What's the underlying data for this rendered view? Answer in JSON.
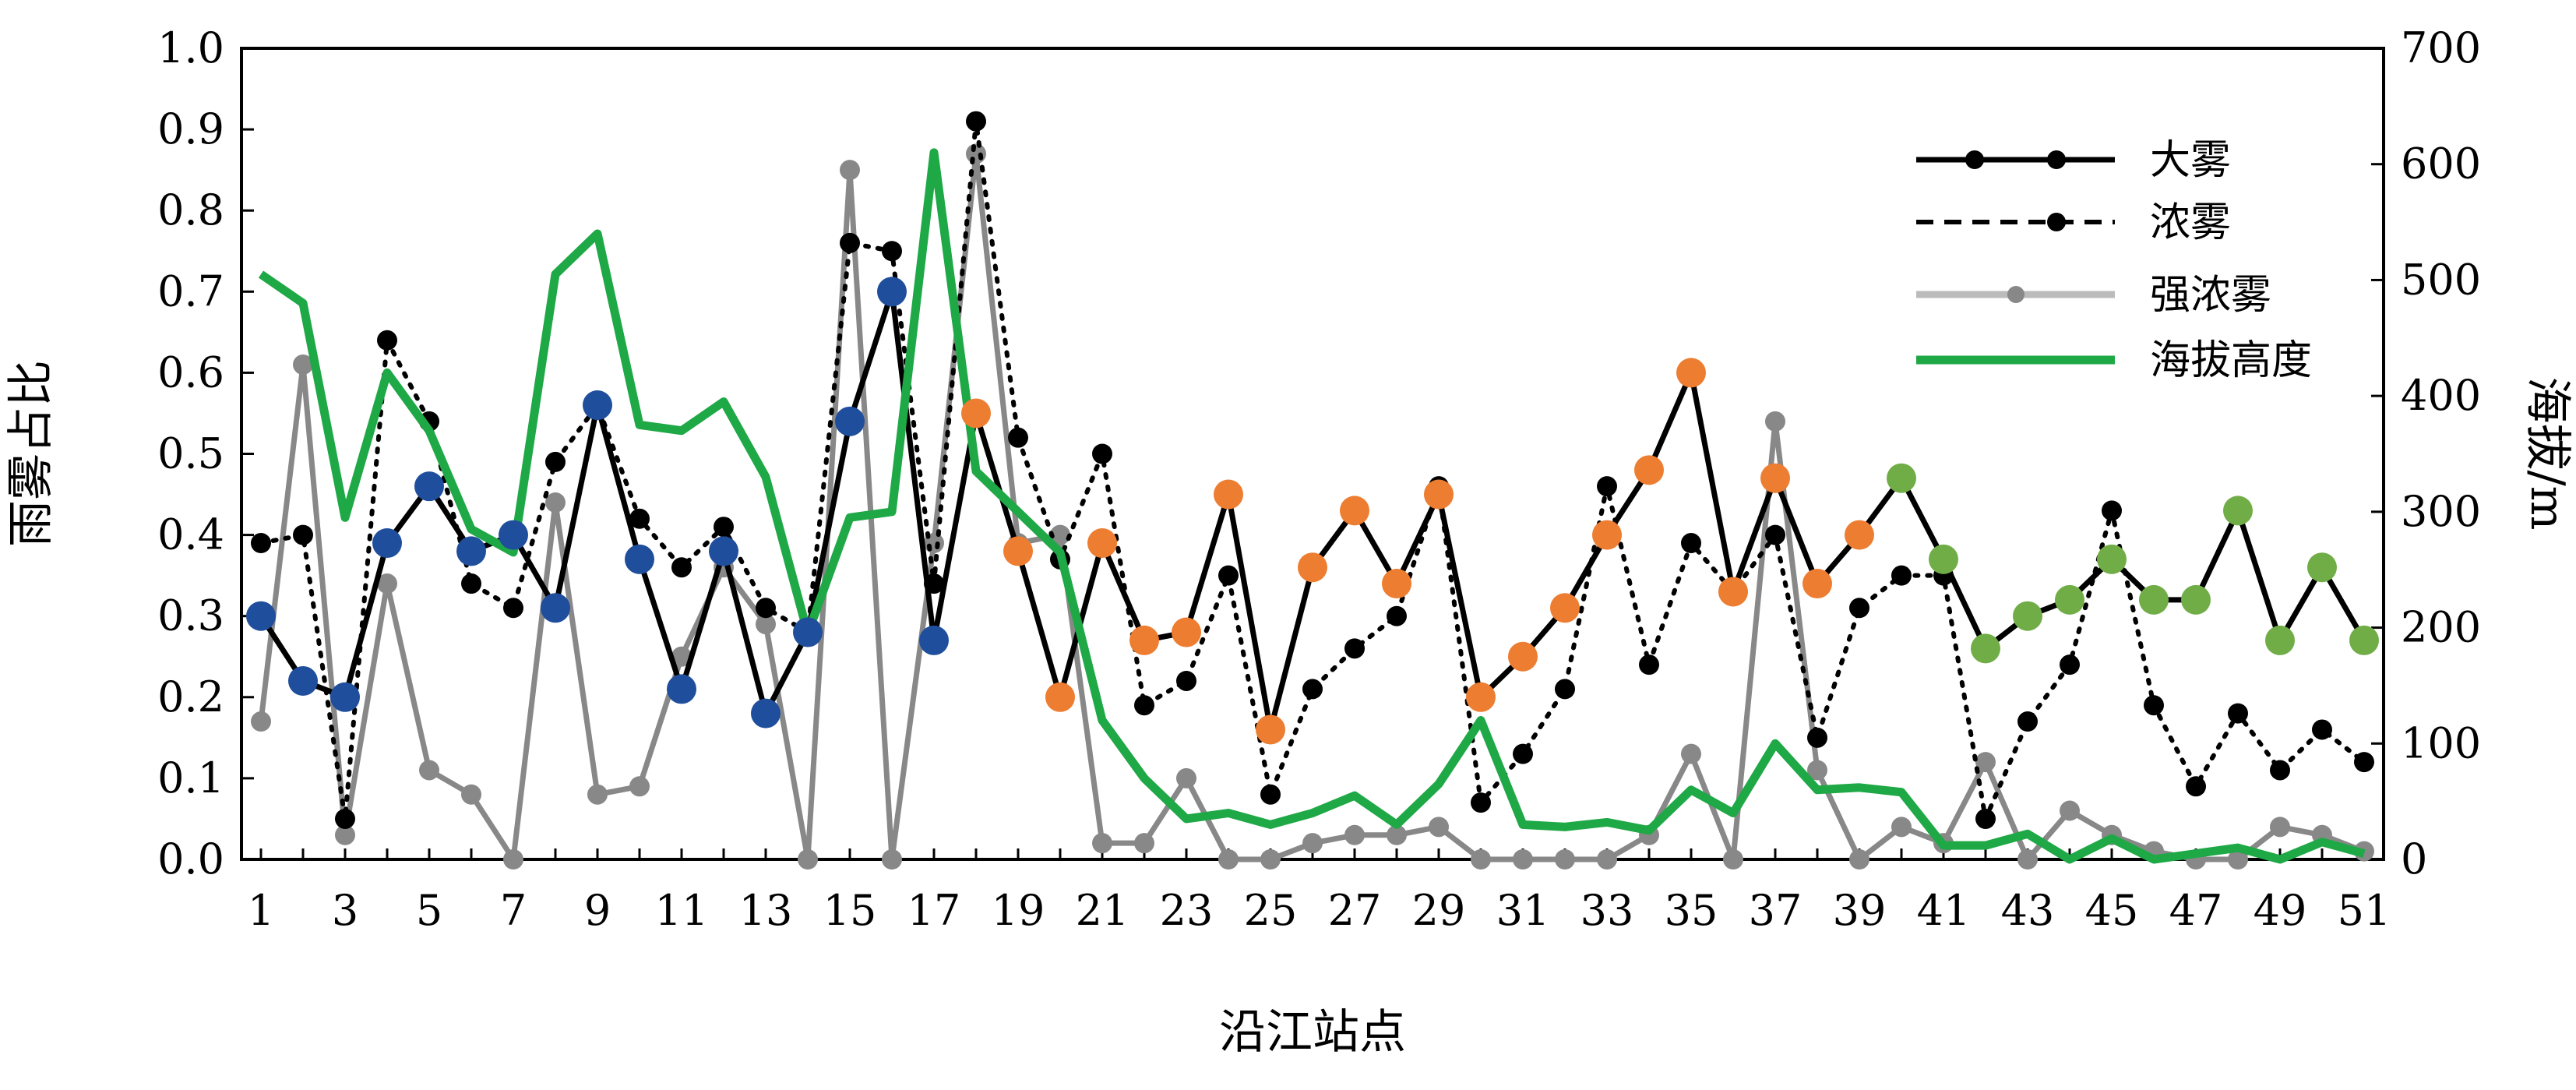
{
  "chart_data": {
    "type": "line",
    "xlabel": "沿江站点",
    "ylabel_left": "雨雾占比",
    "ylabel_right": "海拔/m",
    "ylim_left": [
      0,
      1.0
    ],
    "ylim_right": [
      0,
      700
    ],
    "x_tick_labels": [
      "1",
      "3",
      "5",
      "7",
      "9",
      "11",
      "13",
      "15",
      "17",
      "19",
      "21",
      "23",
      "25",
      "27",
      "29",
      "31",
      "33",
      "35",
      "37",
      "39",
      "41",
      "43",
      "45",
      "47",
      "49",
      "51"
    ],
    "y_left_tick_labels": [
      "0.0",
      "0.1",
      "0.2",
      "0.3",
      "0.4",
      "0.5",
      "0.6",
      "0.7",
      "0.8",
      "0.9",
      "1.0"
    ],
    "y_right_tick_labels": [
      "0",
      "100",
      "200",
      "300",
      "400",
      "500",
      "600",
      "700"
    ],
    "legend_position": "top-right",
    "x": [
      1,
      2,
      3,
      4,
      5,
      6,
      7,
      8,
      9,
      10,
      11,
      12,
      13,
      14,
      15,
      16,
      17,
      18,
      19,
      20,
      21,
      22,
      23,
      24,
      25,
      26,
      27,
      28,
      29,
      30,
      31,
      32,
      33,
      34,
      35,
      36,
      37,
      38,
      39,
      40,
      41,
      42,
      43,
      44,
      45,
      46,
      47,
      48,
      49,
      50,
      51
    ],
    "series": [
      {
        "name": "大雾",
        "axis": "left",
        "color": "#000000",
        "style": "solid",
        "values": [
          0.3,
          0.22,
          0.2,
          0.39,
          0.46,
          0.38,
          0.4,
          0.31,
          0.56,
          0.37,
          0.21,
          0.38,
          0.18,
          0.28,
          0.54,
          0.7,
          0.27,
          0.55,
          0.38,
          0.2,
          0.39,
          0.27,
          0.28,
          0.45,
          0.16,
          0.36,
          0.43,
          0.34,
          0.45,
          0.2,
          0.25,
          0.31,
          0.4,
          0.48,
          0.6,
          0.33,
          0.47,
          0.34,
          0.4,
          0.47,
          0.37,
          0.26,
          0.3,
          0.32,
          0.37,
          0.32,
          0.32,
          0.43,
          0.27,
          0.36,
          0.27
        ],
        "marker_groups": [
          {
            "color": "#1f4e9c",
            "from": 1,
            "to": 17
          },
          {
            "color": "#ed7d31",
            "from": 18,
            "to": 39
          },
          {
            "color": "#70ad47",
            "from": 40,
            "to": 51
          }
        ]
      },
      {
        "name": "浓雾",
        "axis": "left",
        "color": "#000000",
        "style": "dotted",
        "values": [
          0.39,
          0.4,
          0.05,
          0.64,
          0.54,
          0.34,
          0.31,
          0.49,
          0.56,
          0.42,
          0.36,
          0.41,
          0.31,
          0.28,
          0.76,
          0.75,
          0.34,
          0.91,
          0.52,
          0.37,
          0.5,
          0.19,
          0.22,
          0.35,
          0.08,
          0.21,
          0.26,
          0.3,
          0.46,
          0.07,
          0.13,
          0.21,
          0.46,
          0.24,
          0.39,
          0.33,
          0.4,
          0.15,
          0.31,
          0.35,
          0.35,
          0.05,
          0.17,
          0.24,
          0.43,
          0.19,
          0.09,
          0.18,
          0.11,
          0.16,
          0.12
        ]
      },
      {
        "name": "强浓雾",
        "axis": "left",
        "color": "#888888",
        "style": "solid",
        "values": [
          0.17,
          0.61,
          0.03,
          0.34,
          0.11,
          0.08,
          0.0,
          0.44,
          0.08,
          0.09,
          0.25,
          0.36,
          0.29,
          0.0,
          0.85,
          0.0,
          0.39,
          0.87,
          0.39,
          0.4,
          0.02,
          0.02,
          0.1,
          0.0,
          0.0,
          0.02,
          0.03,
          0.03,
          0.04,
          0.0,
          0.0,
          0.0,
          0.0,
          0.03,
          0.13,
          0.0,
          0.54,
          0.11,
          0.0,
          0.04,
          0.02,
          0.12,
          0.0,
          0.06,
          0.03,
          0.01,
          0.0,
          0.0,
          0.04,
          0.03,
          0.01
        ]
      },
      {
        "name": "海拔高度",
        "axis": "right",
        "color": "#1fa846",
        "style": "solid",
        "values": [
          505,
          480,
          295,
          420,
          370,
          285,
          265,
          505,
          540,
          375,
          370,
          395,
          330,
          195,
          295,
          300,
          610,
          335,
          300,
          265,
          120,
          70,
          35,
          40,
          30,
          40,
          55,
          30,
          65,
          120,
          30,
          28,
          32,
          25,
          60,
          40,
          100,
          60,
          62,
          58,
          12,
          12,
          22,
          0,
          18,
          0,
          5,
          10,
          0,
          15,
          5
        ]
      }
    ]
  }
}
